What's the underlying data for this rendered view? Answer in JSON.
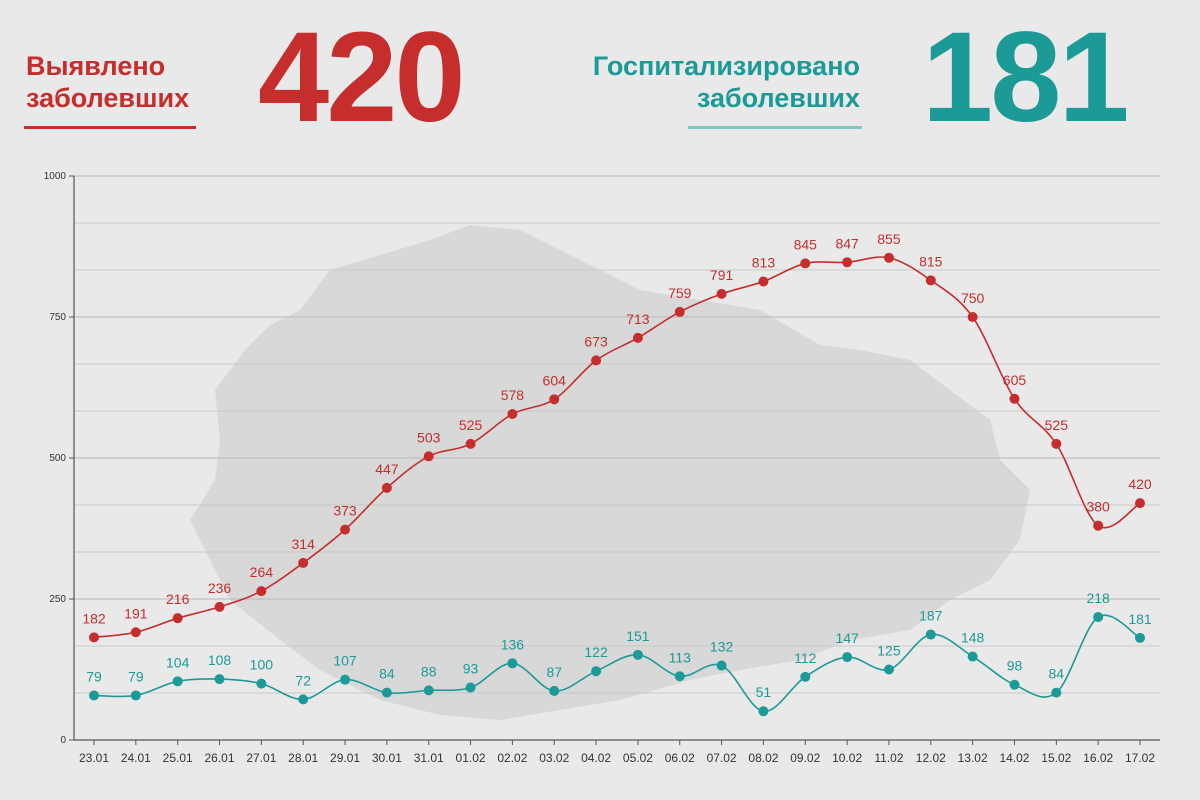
{
  "header": {
    "detected_label_line1": "Выявлено",
    "detected_label_line2": "заболевших",
    "detected_value": "420",
    "hospitalized_label_line1": "Госпитализировано",
    "hospitalized_label_line2": "заболевших",
    "hospitalized_value": "181"
  },
  "colors": {
    "detected": "#c62d2d",
    "hospitalized": "#1b9a98",
    "background": "#e9e9e9",
    "map_silhouette": "#d6d6d6"
  },
  "chart_data": {
    "type": "line",
    "grid": true,
    "ylim": [
      0,
      1000
    ],
    "yticks": [
      "0",
      "250",
      "500",
      "750",
      "1000"
    ],
    "x": [
      "23.01",
      "24.01",
      "25.01",
      "26.01",
      "27.01",
      "28.01",
      "29.01",
      "30.01",
      "31.01",
      "01.02",
      "02.02",
      "03.02",
      "04.02",
      "05.02",
      "06.02",
      "07.02",
      "08.02",
      "09.02",
      "10.02",
      "11.02",
      "12.02",
      "13.02",
      "14.02",
      "15.02",
      "16.02",
      "17.02"
    ],
    "series": [
      {
        "color": "#c62d2d",
        "values": [
          182,
          191,
          216,
          236,
          264,
          314,
          373,
          447,
          503,
          525,
          578,
          604,
          673,
          713,
          759,
          791,
          813,
          845,
          847,
          855,
          815,
          750,
          605,
          525,
          380,
          420
        ]
      },
      {
        "color": "#1b9a98",
        "values": [
          79,
          79,
          104,
          108,
          100,
          72,
          107,
          84,
          88,
          93,
          136,
          87,
          122,
          151,
          113,
          132,
          51,
          112,
          147,
          125,
          187,
          148,
          98,
          84,
          218,
          181
        ]
      }
    ]
  }
}
